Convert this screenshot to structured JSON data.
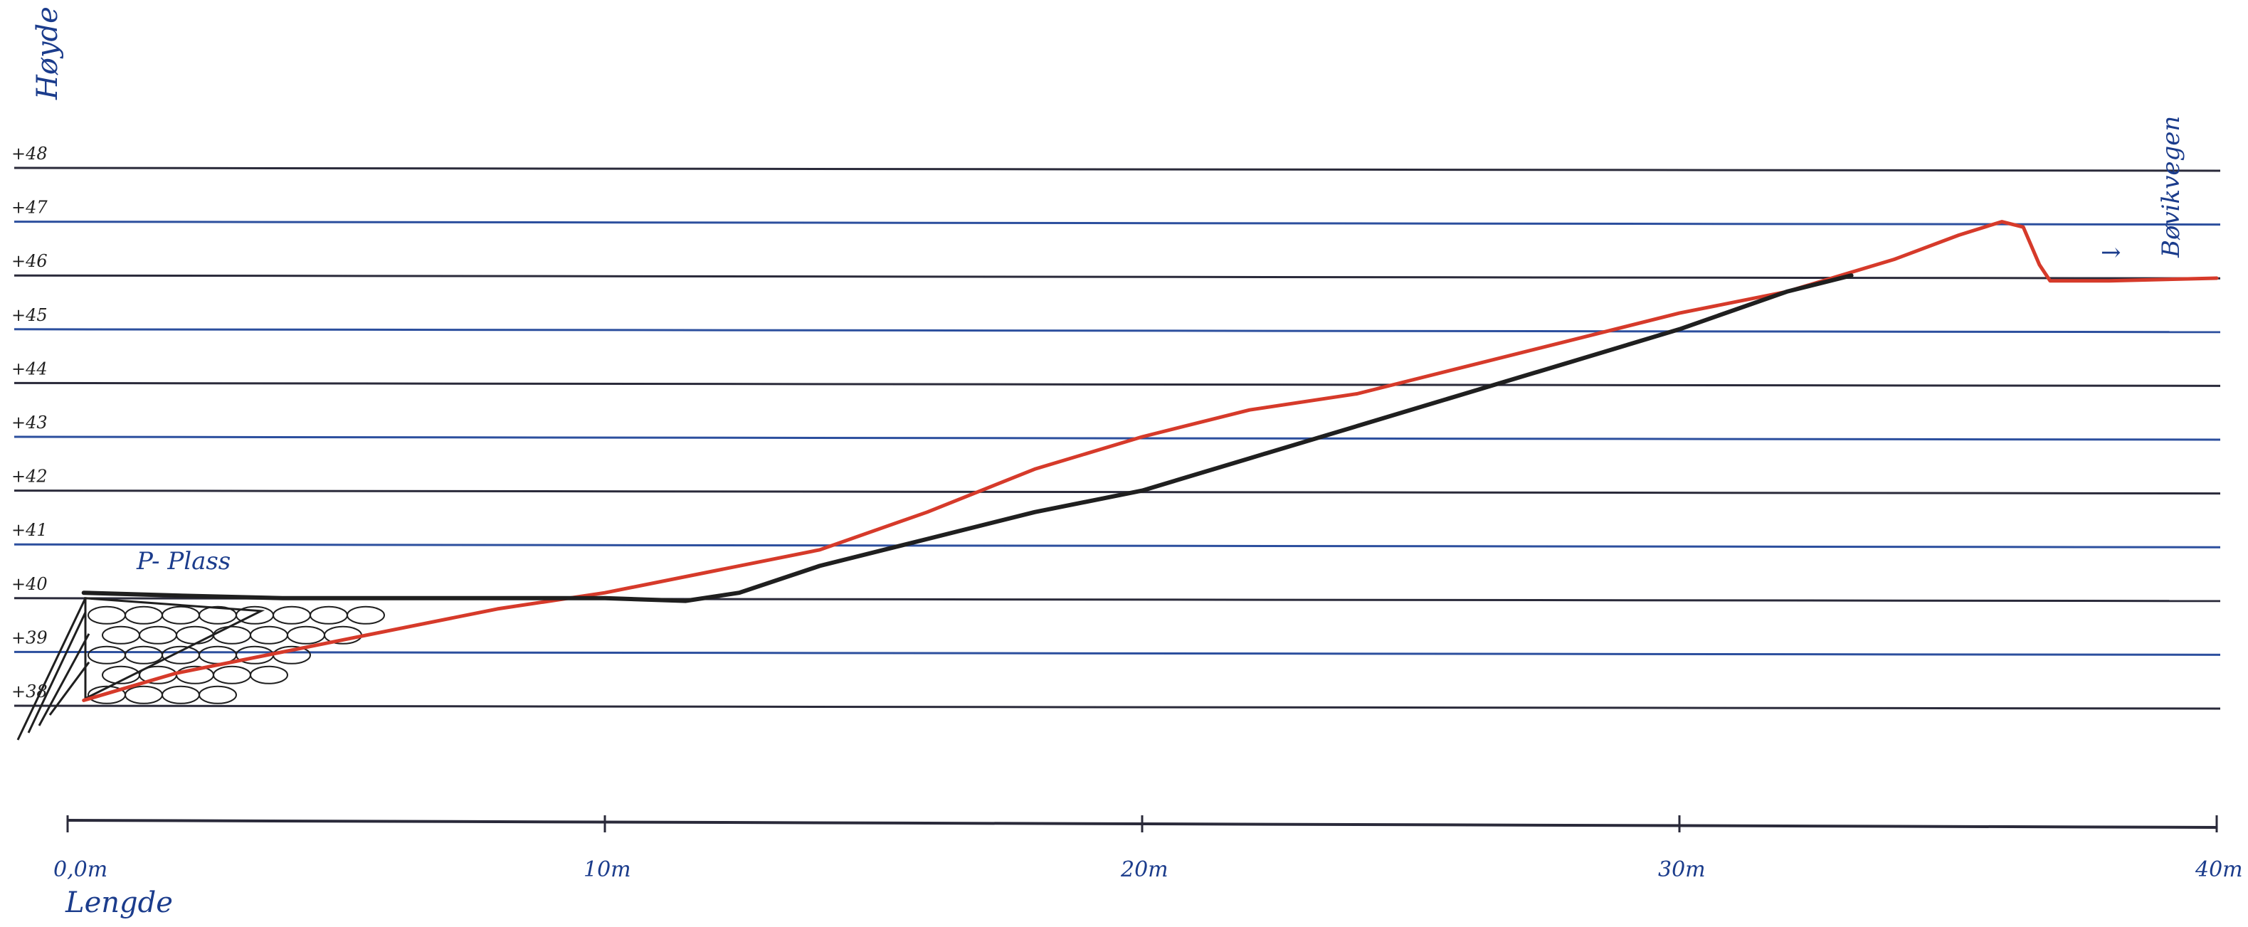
{
  "chart_data": {
    "type": "line",
    "title": "",
    "ylabel": "Høyde",
    "xlabel": "Lengde",
    "x_unit": "m",
    "xlim": [
      0,
      40
    ],
    "ylim": [
      37.5,
      48
    ],
    "grid": true,
    "y_ticks": [
      38,
      39,
      40,
      41,
      42,
      43,
      44,
      45,
      46,
      47,
      48
    ],
    "y_tick_labels": [
      "+38",
      "+39",
      "+40",
      "+41",
      "+42",
      "+43",
      "+44",
      "+45",
      "+46",
      "+47",
      "+48"
    ],
    "x_ticks": [
      0,
      10,
      20,
      30,
      40
    ],
    "x_tick_labels": [
      "0,0m",
      "10m",
      "20m",
      "30m",
      "40m"
    ],
    "annotations": {
      "parking": "P- Plass",
      "road": "Bøvikvegen",
      "road_arrow": "→"
    },
    "series": [
      {
        "color": "#d63a2a",
        "points": [
          [
            0.3,
            38.1
          ],
          [
            2,
            38.6
          ],
          [
            4,
            39.0
          ],
          [
            6,
            39.4
          ],
          [
            8,
            39.8
          ],
          [
            10,
            40.1
          ],
          [
            12,
            40.5
          ],
          [
            14,
            40.9
          ],
          [
            16,
            41.6
          ],
          [
            18,
            42.4
          ],
          [
            20,
            43.0
          ],
          [
            22,
            43.5
          ],
          [
            24,
            43.8
          ],
          [
            26,
            44.3
          ],
          [
            28,
            44.8
          ],
          [
            30,
            45.3
          ],
          [
            32,
            45.7
          ],
          [
            34,
            46.3
          ],
          [
            35.2,
            46.75
          ],
          [
            36,
            47.0
          ],
          [
            36.4,
            46.9
          ],
          [
            36.7,
            46.2
          ],
          [
            36.9,
            45.9
          ],
          [
            38,
            45.9
          ],
          [
            40,
            45.95
          ]
        ]
      },
      {
        "color": "#1f1f1f",
        "points": [
          [
            0.3,
            40.1
          ],
          [
            2,
            40.05
          ],
          [
            4,
            40.0
          ],
          [
            6,
            40.0
          ],
          [
            8,
            40.0
          ],
          [
            10,
            40.0
          ],
          [
            11.5,
            39.95
          ],
          [
            12.5,
            40.1
          ],
          [
            14,
            40.6
          ],
          [
            16,
            41.1
          ],
          [
            18,
            41.6
          ],
          [
            20,
            42.0
          ],
          [
            22,
            42.6
          ],
          [
            24,
            43.2
          ],
          [
            26,
            43.8
          ],
          [
            28,
            44.4
          ],
          [
            30,
            45.0
          ],
          [
            32,
            45.7
          ],
          [
            33.2,
            46.0
          ]
        ]
      }
    ]
  }
}
